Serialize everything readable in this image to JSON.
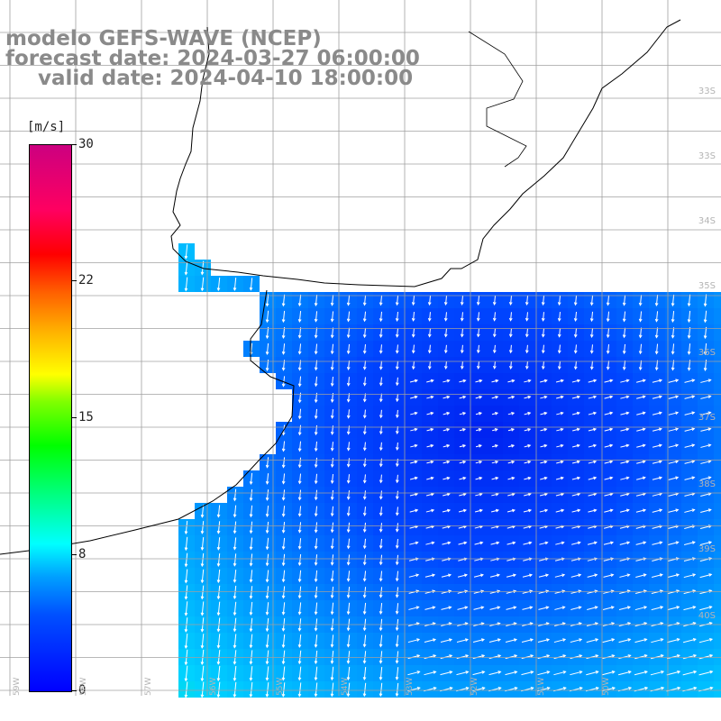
{
  "header": {
    "model_line": "modelo GEFS-WAVE (NCEP)",
    "forecast_line": "forecast date: 2024-03-27 06:00:00",
    "valid_line": "valid date: 2024-04-10 18:00:00"
  },
  "colorbar": {
    "unit": "[m/s]",
    "ticks": [
      {
        "label": "30",
        "value": 30
      },
      {
        "label": "22",
        "value": 22
      },
      {
        "label": "15",
        "value": 15
      },
      {
        "label": "8",
        "value": 8
      },
      {
        "label": "0",
        "value": 0
      }
    ],
    "min": 0,
    "max": 30
  },
  "map": {
    "field": "wind speed and direction",
    "land_color": "#ffffff",
    "grid_color": "#a0a0a0",
    "coast_color": "#000000",
    "lat_labels": [
      "33S",
      "34S",
      "35S",
      "36S",
      "37S",
      "38S",
      "39S",
      "40S"
    ],
    "lon_labels": [
      "59W",
      "58W",
      "57W",
      "56W",
      "55W",
      "54W",
      "53W",
      "52W",
      "51W",
      "50W"
    ]
  },
  "colors": {
    "title_text": "#8a8a8a",
    "arrow": "#ffffff"
  }
}
